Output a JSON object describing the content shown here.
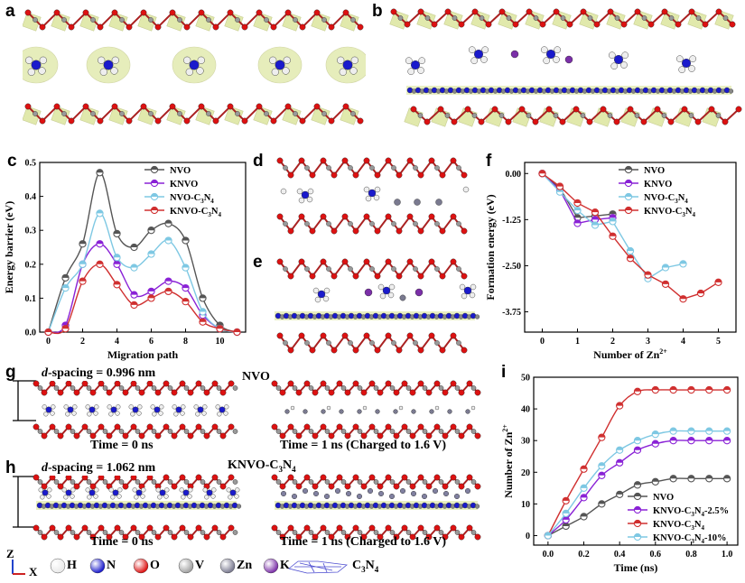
{
  "panels": {
    "a": "a",
    "b": "b",
    "c": "c",
    "d": "d",
    "e": "e",
    "f": "f",
    "g": "g",
    "h": "h",
    "i": "i"
  },
  "panel_g": {
    "spacing_label": "d-spacing = 0.996 nm",
    "spacing_italic": "d",
    "spacing_rest": "-spacing = 0.996 nm",
    "material": "NVO",
    "time_left": "Time = 0 ns",
    "time_right": "Time = 1 ns (Charged to 1.6 V)"
  },
  "panel_h": {
    "spacing_italic": "d",
    "spacing_rest": "-spacing = 1.062 nm",
    "material_main": "KNVO-C",
    "material_sub": "3",
    "material_end": "N",
    "material_sub2": "4",
    "time_left": "Time = 0 ns",
    "time_right": "Time = 1 ns (Charged to 1.6 V)"
  },
  "atom_legend": {
    "axis_z": "Z",
    "axis_x": "X",
    "items": [
      {
        "label": "H",
        "color": "#e8e8e8"
      },
      {
        "label": "N",
        "color": "#1a1acc"
      },
      {
        "label": "O",
        "color": "#dd1111"
      },
      {
        "label": "V",
        "color": "#a0a0a0"
      },
      {
        "label": "Zn",
        "color": "#7a7a90"
      },
      {
        "label": "K",
        "color": "#7b2fa8"
      }
    ],
    "c3n4_label_main": "C",
    "c3n4_sub1": "3",
    "c3n4_mid": "N",
    "c3n4_sub2": "4"
  },
  "chart_data": [
    {
      "id": "c",
      "type": "line",
      "xlabel": "Migration path",
      "ylabel": "Energy barrier (eV)",
      "xlim": [
        -0.5,
        11.5
      ],
      "ylim": [
        0,
        0.5
      ],
      "xticks": [
        "0",
        "2",
        "4",
        "6",
        "8",
        "10"
      ],
      "yticks": [
        "0.0",
        "0.1",
        "0.2",
        "0.3",
        "0.4",
        "0.5"
      ],
      "x": [
        0,
        1,
        2,
        3,
        4,
        5,
        6,
        7,
        8,
        9,
        10,
        11
      ],
      "series": [
        {
          "name": "NVO",
          "color": "#555555",
          "values": [
            0.0,
            0.16,
            0.26,
            0.47,
            0.29,
            0.25,
            0.3,
            0.32,
            0.27,
            0.1,
            0.02,
            0.0
          ]
        },
        {
          "name": "KNVO",
          "color": "#8a22d6",
          "values": [
            0.0,
            0.02,
            0.2,
            0.26,
            0.2,
            0.11,
            0.12,
            0.15,
            0.13,
            0.05,
            0.01,
            0.0
          ]
        },
        {
          "name": "NVO-C3N4",
          "color": "#7ec8e3",
          "values": [
            0.0,
            0.13,
            0.2,
            0.35,
            0.22,
            0.19,
            0.23,
            0.27,
            0.19,
            0.06,
            0.01,
            0.0
          ]
        },
        {
          "name": "KNVO-C3N4",
          "color": "#d03030",
          "values": [
            0.0,
            0.01,
            0.15,
            0.2,
            0.14,
            0.08,
            0.1,
            0.12,
            0.09,
            0.03,
            0.01,
            0.0
          ]
        }
      ],
      "legend": [
        "NVO",
        "KNVO",
        "NVO-C3N4",
        "KNVO-C3N4"
      ]
    },
    {
      "id": "f",
      "type": "line",
      "xlabel": "Number of Zn2+",
      "xlabel_main": "Number of Zn",
      "xlabel_sup": "2+",
      "ylabel": "Formation energy (eV)",
      "xlim": [
        -0.5,
        5.5
      ],
      "ylim": [
        -4.3,
        0.3
      ],
      "xticks": [
        "0",
        "1",
        "2",
        "3",
        "4",
        "5"
      ],
      "yticks": [
        "0.00",
        "-1.25",
        "-2.50",
        "-3.75"
      ],
      "ytick_values": [
        0,
        -1.25,
        -2.5,
        -3.75
      ],
      "series": [
        {
          "name": "NVO",
          "color": "#555555",
          "x": [
            0,
            0.5,
            1,
            1.5,
            2
          ],
          "values": [
            0.0,
            -0.4,
            -1.2,
            -1.15,
            -1.1
          ]
        },
        {
          "name": "KNVO",
          "color": "#8a22d6",
          "x": [
            0,
            0.5,
            1,
            1.5,
            2
          ],
          "values": [
            0.0,
            -0.45,
            -1.35,
            -1.25,
            -1.2
          ]
        },
        {
          "name": "NVO-C3N4",
          "color": "#7ec8e3",
          "x": [
            0,
            0.5,
            1,
            1.5,
            2,
            2.5,
            3,
            3.5,
            4
          ],
          "values": [
            0.0,
            -0.5,
            -1.0,
            -1.4,
            -1.3,
            -2.1,
            -2.85,
            -2.55,
            -2.45
          ]
        },
        {
          "name": "KNVO-C3N4",
          "color": "#d03030",
          "x": [
            0,
            0.5,
            1,
            1.5,
            2,
            2.5,
            3,
            3.5,
            4,
            4.5,
            5
          ],
          "values": [
            0.0,
            -0.35,
            -0.8,
            -1.05,
            -1.7,
            -2.3,
            -2.75,
            -3.0,
            -3.4,
            -3.25,
            -2.95
          ]
        }
      ],
      "legend": [
        "NVO",
        "KNVO",
        "NVO-C3N4",
        "KNVO-C3N4"
      ]
    },
    {
      "id": "i",
      "type": "line",
      "xlabel": "Time (ns)",
      "ylabel": "Number of Zn2+",
      "ylabel_main": "Number of Zn",
      "ylabel_sup": "2+",
      "xlim": [
        -0.08,
        1.06
      ],
      "ylim": [
        -3,
        50
      ],
      "xticks": [
        "0.0",
        "0.2",
        "0.4",
        "0.6",
        "0.8",
        "1.0"
      ],
      "yticks": [
        "0",
        "10",
        "20",
        "30",
        "40",
        "50"
      ],
      "x": [
        0,
        0.1,
        0.2,
        0.3,
        0.4,
        0.5,
        0.6,
        0.7,
        0.8,
        0.9,
        1.0
      ],
      "series": [
        {
          "name": "NVO",
          "color": "#555555",
          "values": [
            0,
            3,
            6,
            10,
            13,
            16,
            17,
            18,
            18,
            18,
            18
          ]
        },
        {
          "name": "KNVO-C3N4-2.5%",
          "color": "#8a22d6",
          "values": [
            0,
            5,
            12,
            19,
            23,
            27,
            29,
            30,
            30,
            30,
            30
          ]
        },
        {
          "name": "KNVO-C3N4",
          "color": "#d03030",
          "values": [
            0,
            11,
            21,
            31,
            41,
            45.5,
            46,
            46,
            46,
            46,
            46
          ]
        },
        {
          "name": "KNVO-C3N4-10%",
          "color": "#7ec8e3",
          "values": [
            0,
            7,
            15,
            22,
            27,
            30,
            32,
            33,
            33,
            33,
            33
          ]
        }
      ],
      "legend": [
        "NVO",
        "KNVO-C3N4-2.5%",
        "KNVO-C3N4",
        "KNVO-C3N4-10%"
      ]
    }
  ]
}
